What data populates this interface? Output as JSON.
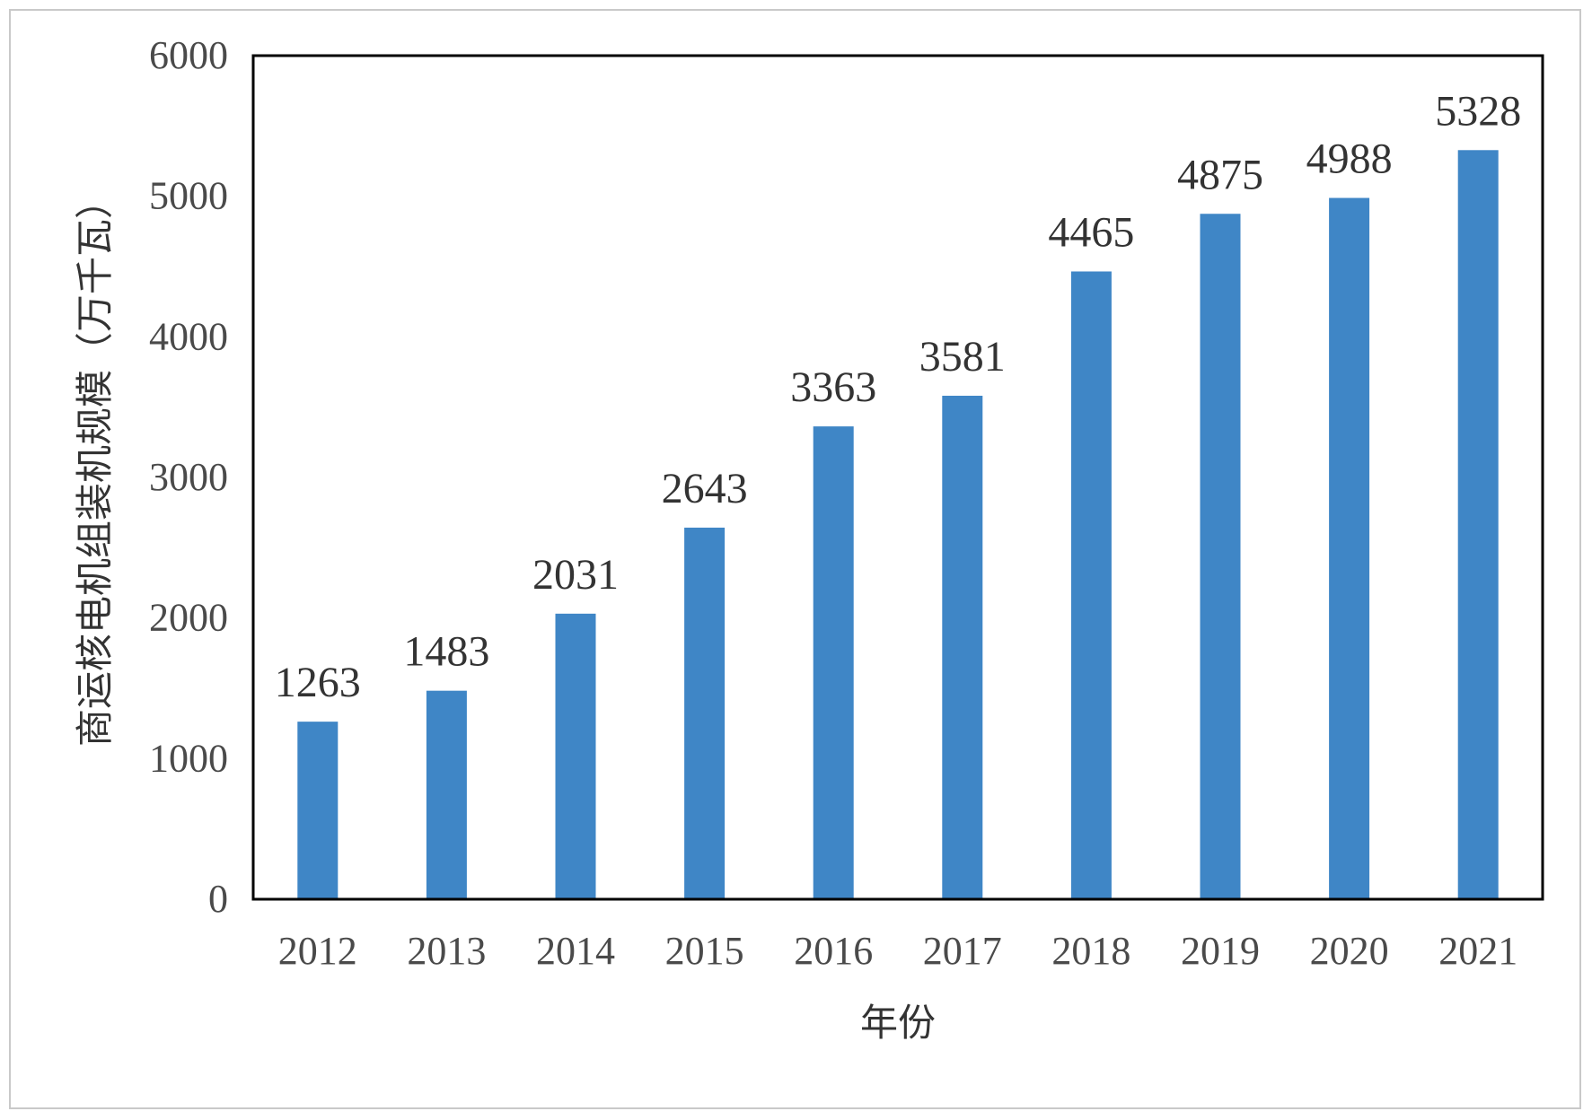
{
  "chart_data": {
    "type": "bar",
    "categories": [
      "2012",
      "2013",
      "2014",
      "2015",
      "2016",
      "2017",
      "2018",
      "2019",
      "2020",
      "2021"
    ],
    "values": [
      1263,
      1483,
      2031,
      2643,
      3363,
      3581,
      4465,
      4875,
      4988,
      5328
    ],
    "title": "",
    "xlabel": "年份",
    "ylabel": "商运核电机组装机规模（万千瓦）",
    "ylim": [
      0,
      6000
    ],
    "yticks": [
      0,
      1000,
      2000,
      3000,
      4000,
      5000,
      6000
    ],
    "bar_color": "#3f86c6",
    "data_labels": true,
    "grid": false,
    "legend": "none"
  }
}
